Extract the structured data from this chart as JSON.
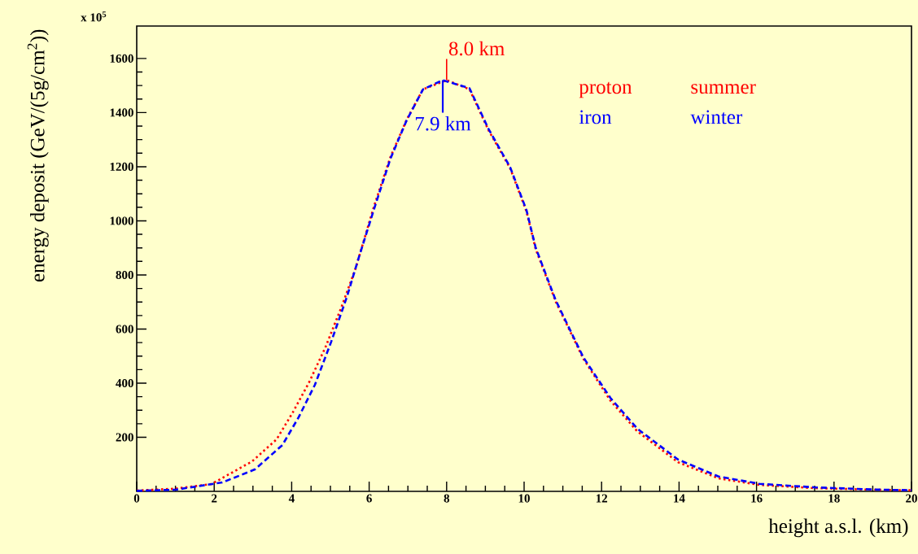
{
  "chart_data": {
    "type": "line",
    "xlabel": "height a.s.l. (km)",
    "ylabel": "energy deposit (GeV/(5g/cm$^{2}$))",
    "xlim": [
      0,
      20
    ],
    "ylim": [
      0,
      1720
    ],
    "xticks": [
      0,
      2,
      4,
      6,
      8,
      10,
      12,
      14,
      16,
      18,
      20
    ],
    "yticks": [
      200,
      400,
      600,
      800,
      1000,
      1200,
      1400,
      1600
    ],
    "grid": false,
    "series": [
      {
        "name": "proton",
        "color": "#ff0000",
        "line_style": "dotted",
        "x": [
          0,
          1,
          1.93,
          2.98,
          3.61,
          4.03,
          4.45,
          4.87,
          5.29,
          5.65,
          6.13,
          6.55,
          6.97,
          7.39,
          8.0,
          8.59,
          9.08,
          9.64,
          10.06,
          10.3,
          10.82,
          11.53,
          12.23,
          12.92,
          13.97,
          15.02,
          16.07,
          17.48,
          19,
          20
        ],
        "values": [
          3,
          10,
          27,
          111,
          192,
          292,
          403,
          532,
          683,
          824,
          1056,
          1236,
          1374,
          1486,
          1520,
          1486,
          1335,
          1194,
          1035,
          895,
          700,
          490,
          335,
          222,
          108,
          48,
          24,
          12,
          6,
          4
        ]
      },
      {
        "name": "iron",
        "color": "#0000ff",
        "line_style": "dashed",
        "x": [
          0,
          1,
          2.21,
          3.05,
          3.76,
          4.18,
          4.6,
          5.02,
          5.44,
          5.71,
          6.13,
          6.55,
          6.97,
          7.39,
          7.9,
          8.59,
          9.08,
          9.64,
          10.06,
          10.3,
          10.82,
          11.53,
          12.23,
          12.92,
          13.97,
          15.02,
          16.07,
          17.48,
          19,
          20
        ],
        "values": [
          2,
          6,
          33,
          81,
          171,
          274,
          394,
          553,
          725,
          854,
          1045,
          1230,
          1372,
          1486,
          1520,
          1490,
          1340,
          1198,
          1040,
          900,
          705,
          495,
          345,
          232,
          118,
          55,
          28,
          15,
          7,
          4
        ]
      }
    ],
    "annotations": [
      "x 10$^{5}$",
      {
        "text": "8.0 km",
        "x": 8.0,
        "y": 1520
      },
      {
        "text": "7.9 km",
        "x": 7.9,
        "y": 1520
      },
      "summer",
      "winter"
    ]
  }
}
